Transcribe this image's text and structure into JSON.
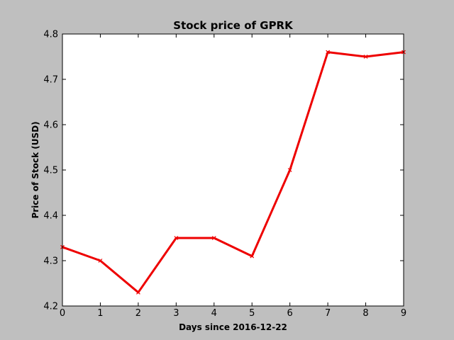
{
  "chart_data": {
    "type": "line",
    "title": "Stock price of GPRK",
    "xlabel": "Days since 2016-12-22",
    "ylabel": "Price of Stock (USD)",
    "xlim": [
      0,
      9
    ],
    "ylim": [
      4.2,
      4.8
    ],
    "xticks": [
      0,
      1,
      2,
      3,
      4,
      5,
      6,
      7,
      8,
      9
    ],
    "yticks": [
      4.2,
      4.3,
      4.4,
      4.5,
      4.6,
      4.7,
      4.8
    ],
    "grid": false,
    "series": [
      {
        "color": "#ee0000",
        "marker": "x",
        "x": [
          0,
          1,
          2,
          3,
          4,
          5,
          6,
          7,
          8,
          9
        ],
        "y": [
          4.33,
          4.3,
          4.23,
          4.35,
          4.35,
          4.31,
          4.5,
          4.76,
          4.75,
          4.76
        ]
      }
    ]
  }
}
